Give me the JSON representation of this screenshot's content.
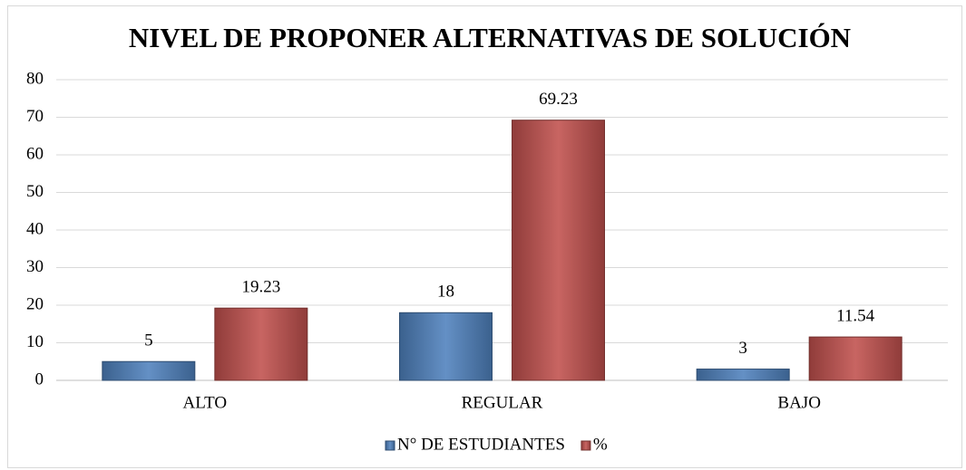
{
  "chart_data": {
    "type": "bar",
    "title": "NIVEL DE PROPONER ALTERNATIVAS DE SOLUCIÓN",
    "categories": [
      "ALTO",
      "REGULAR",
      "BAJO"
    ],
    "series": [
      {
        "name": "N° DE ESTUDIANTES",
        "color": "#4f81bd",
        "values": [
          5,
          18,
          3
        ]
      },
      {
        "name": "%",
        "color": "#c0504d",
        "values": [
          19.23,
          69.23,
          11.54
        ]
      }
    ],
    "ylim": [
      0,
      80
    ],
    "yticks": [
      0,
      10,
      20,
      30,
      40,
      50,
      60,
      70,
      80
    ],
    "grid": true,
    "legend": "bottom"
  }
}
